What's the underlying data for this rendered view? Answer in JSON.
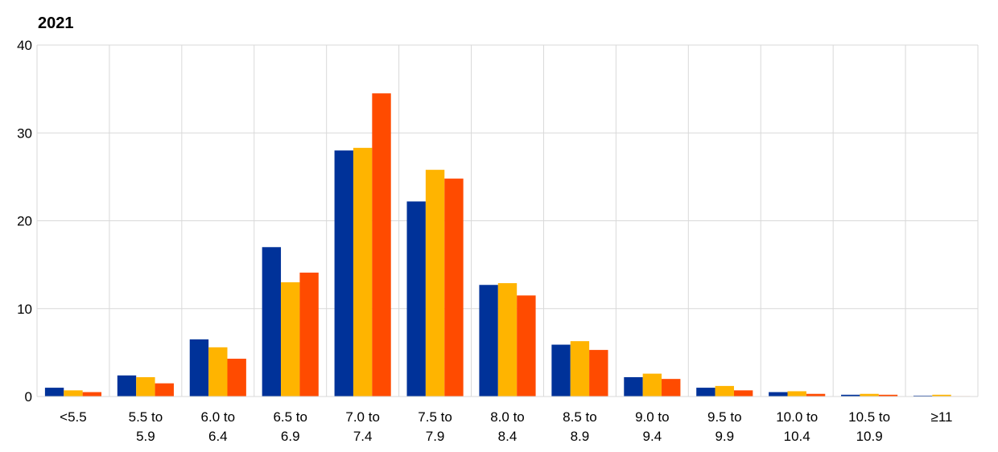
{
  "chart_data": {
    "type": "bar",
    "title": "2021",
    "xlabel": "",
    "ylabel": "",
    "ylim": [
      0,
      40
    ],
    "yticks": [
      "0",
      "10",
      "20",
      "30",
      "40"
    ],
    "grid": true,
    "categories": [
      [
        "<5.5"
      ],
      [
        "5.5 to",
        "5.9"
      ],
      [
        "6.0 to",
        "6.4"
      ],
      [
        "6.5 to",
        "6.9"
      ],
      [
        "7.0 to",
        "7.4"
      ],
      [
        "7.5 to",
        "7.9"
      ],
      [
        "8.0 to",
        "8.4"
      ],
      [
        "8.5 to",
        "8.9"
      ],
      [
        "9.0 to",
        "9.4"
      ],
      [
        "9.5 to",
        "9.9"
      ],
      [
        "10.0 to",
        "10.4"
      ],
      [
        "10.5 to",
        "10.9"
      ],
      [
        "≥11"
      ]
    ],
    "series": [
      {
        "color": "#003299",
        "values": [
          1.0,
          2.4,
          6.5,
          17.0,
          28.0,
          22.2,
          12.7,
          5.9,
          2.2,
          1.0,
          0.5,
          0.2,
          0.1
        ]
      },
      {
        "color": "#FFB400",
        "values": [
          0.7,
          2.2,
          5.6,
          13.0,
          28.3,
          25.8,
          12.9,
          6.3,
          2.6,
          1.2,
          0.6,
          0.3,
          0.2
        ]
      },
      {
        "color": "#FF4B00",
        "values": [
          0.5,
          1.5,
          4.3,
          14.1,
          34.5,
          24.8,
          11.5,
          5.3,
          2.0,
          0.7,
          0.3,
          0.2,
          0.05
        ]
      }
    ]
  }
}
